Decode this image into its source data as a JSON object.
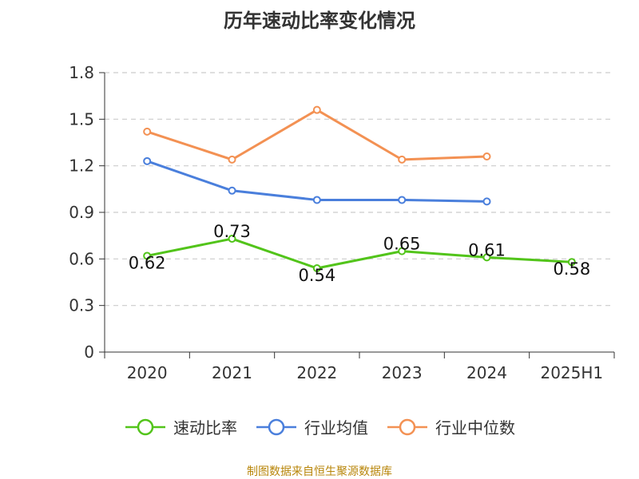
{
  "chart_data": {
    "type": "line",
    "title": "历年速动比率变化情况",
    "categories": [
      "2020",
      "2021",
      "2022",
      "2023",
      "2024",
      "2025H1"
    ],
    "ylim": [
      0,
      1.8
    ],
    "yticks": [
      "0",
      "0.3",
      "0.6",
      "0.9",
      "1.2",
      "1.5",
      "1.8"
    ],
    "grid": true,
    "legend_position": "bottom",
    "series": [
      {
        "name": "速动比率",
        "color": "#52c41a",
        "values": [
          0.62,
          0.73,
          0.54,
          0.65,
          0.61,
          0.58
        ],
        "labels": [
          "0.62",
          "0.73",
          "0.54",
          "0.65",
          "0.61",
          "0.58"
        ]
      },
      {
        "name": "行业均值",
        "color": "#4a7fdc",
        "values": [
          1.23,
          1.04,
          0.98,
          0.98,
          0.97,
          null
        ]
      },
      {
        "name": "行业中位数",
        "color": "#f39153",
        "values": [
          1.42,
          1.24,
          1.56,
          1.24,
          1.26,
          null
        ]
      }
    ]
  },
  "source_note": "制图数据来自恒生聚源数据库"
}
